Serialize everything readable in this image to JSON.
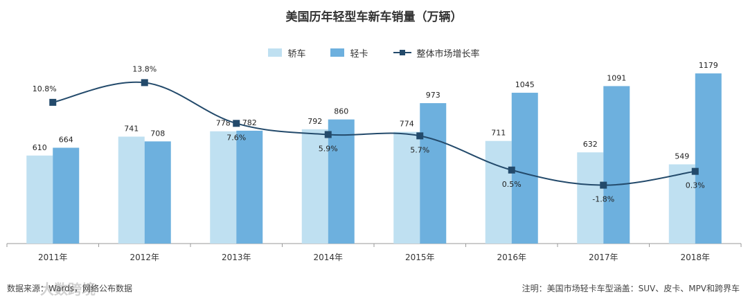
{
  "chart_data": {
    "type": "bar",
    "title": "美国历年轻型车新车销量（万辆）",
    "categories": [
      "2011年",
      "2012年",
      "2013年",
      "2014年",
      "2015年",
      "2016年",
      "2017年",
      "2018年"
    ],
    "series": [
      {
        "name": "轿车",
        "type": "bar",
        "color": "#bfe0f1",
        "values": [
          610,
          741,
          778,
          792,
          774,
          711,
          632,
          549
        ]
      },
      {
        "name": "轻卡",
        "type": "bar",
        "color": "#6db0de",
        "values": [
          664,
          708,
          782,
          860,
          973,
          1045,
          1091,
          1179
        ]
      },
      {
        "name": "整体市场增长率",
        "type": "line",
        "color": "#234a6b",
        "values": [
          10.8,
          13.8,
          7.6,
          5.9,
          5.7,
          0.5,
          -1.8,
          0.3
        ],
        "labels": [
          "10.8%",
          "13.8%",
          "7.6%",
          "5.9%",
          "5.7%",
          "0.5%",
          "-1.8%",
          "0.3%"
        ]
      }
    ],
    "ylim": [
      0,
      1400
    ],
    "growth_range": [
      -5,
      15
    ],
    "legend_position": "top-center"
  },
  "footer": {
    "source": "数据来源：Wards，网络公布数据",
    "note": "注明：美国市场轻卡车型涵盖：SUV、皮卡、MPV和跨界车",
    "watermark": "大数跨境"
  }
}
